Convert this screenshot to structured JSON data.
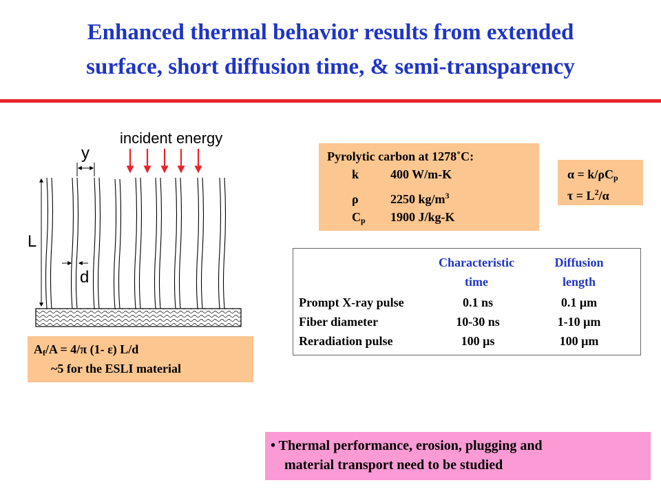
{
  "slide": {
    "title_line1": "Enhanced thermal behavior results from extended",
    "title_line2": "surface, short diffusion time, & semi-transparency",
    "colors": {
      "title": "#1f35c4",
      "rule": "#e8232a",
      "orange_box": "#fcc690",
      "pink_box": "#fb9ad4",
      "arrows": "#e8232a"
    }
  },
  "diagram": {
    "incident_label": "incident energy",
    "y_label": "y",
    "L_label": "L",
    "d_label": "d"
  },
  "properties": {
    "header": "Pyrolytic carbon at 1278˚C:",
    "rows": [
      {
        "sym": "k",
        "value": "400 W/m-K"
      },
      {
        "sym": "ρ",
        "value": "2250 kg/m",
        "sup": "3"
      },
      {
        "sym": "C",
        "sub": "p",
        "value": "1900 J/kg-K"
      }
    ]
  },
  "formula": {
    "line1_pre": "α = k/ρC",
    "line1_sub": "p",
    "line2_pre": "τ = L",
    "line2_sup": "2",
    "line2_post": "/α"
  },
  "area": {
    "line1_pre": "A",
    "line1_sub": "f",
    "line1_post": "/A = 4/π (1- ε) L/d",
    "line2": "~5 for the ESLI material"
  },
  "table": {
    "col1_h1": "Characteristic",
    "col1_h2": "time",
    "col2_h1": "Diffusion",
    "col2_h2": "length",
    "rows": [
      {
        "label": "Prompt X-ray pulse",
        "time": "0.1 ns",
        "length": "0.1 μm"
      },
      {
        "label": "Fiber diameter",
        "time": "10-30 ns",
        "length": "1-10 μm"
      },
      {
        "label": "Reradiation pulse",
        "time": "100 μs",
        "length": "100 μm"
      }
    ]
  },
  "bullet": {
    "line1": "• Thermal performance, erosion, plugging and",
    "line2": "material transport need to be studied"
  }
}
